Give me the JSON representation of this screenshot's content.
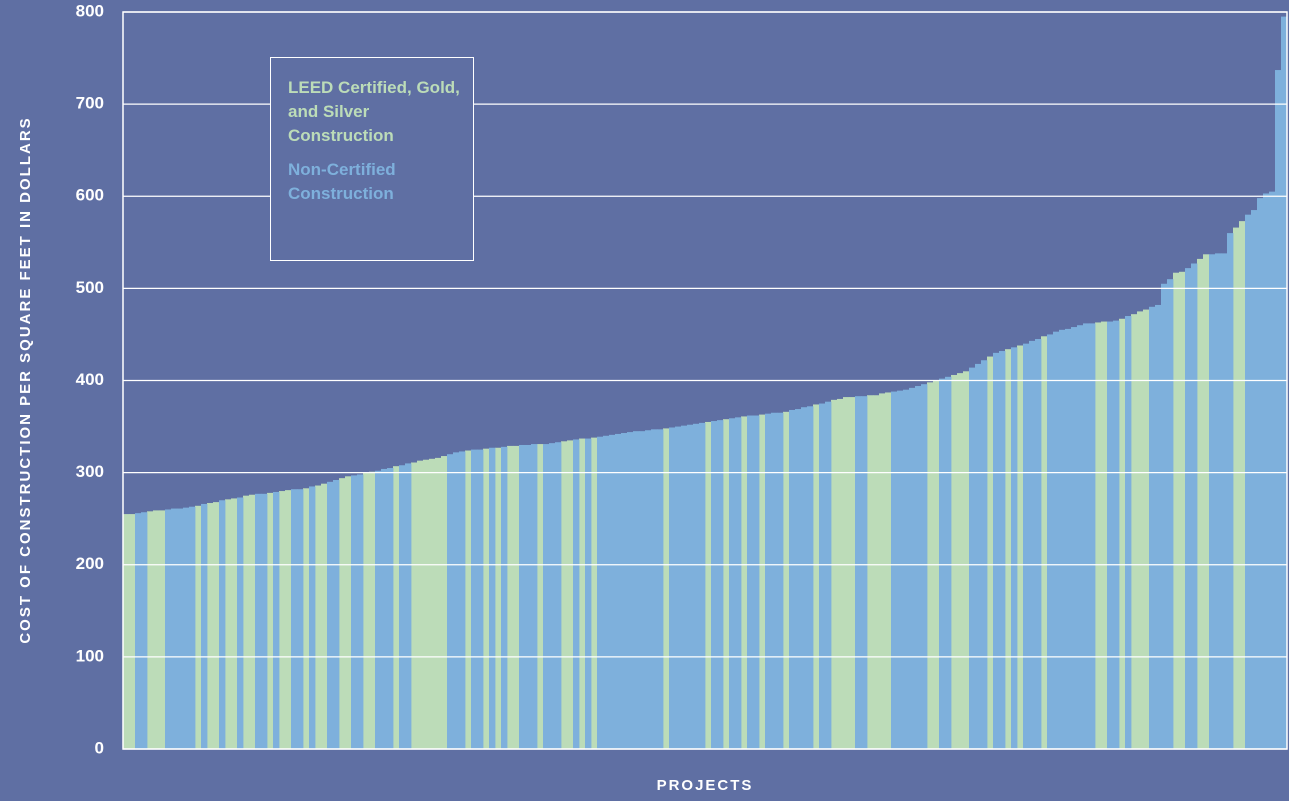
{
  "chart_data": {
    "type": "bar",
    "y_label": "COST OF CONSTRUCTION PER SQUARE FEET IN DOLLARS",
    "x_label": "PROJECTS",
    "ylim": [
      0,
      800
    ],
    "yticks": [
      0,
      100,
      200,
      300,
      400,
      500,
      600,
      700,
      800
    ],
    "grid": true,
    "series": [
      {
        "name": "LEED Certified, Gold, and Silver Construction",
        "color": "#bcdcb8",
        "values": [
          255,
          255,
          null,
          null,
          258,
          259,
          259,
          null,
          null,
          null,
          null,
          null,
          264,
          null,
          267,
          268,
          null,
          271,
          272,
          null,
          275,
          276,
          null,
          null,
          278,
          null,
          280,
          281,
          null,
          null,
          283,
          null,
          286,
          288,
          null,
          null,
          294,
          296,
          null,
          null,
          300,
          301,
          null,
          null,
          null,
          307,
          null,
          null,
          311,
          313,
          314,
          315,
          316,
          318,
          null,
          null,
          null,
          324,
          null,
          null,
          326,
          null,
          327,
          null,
          329,
          329,
          null,
          null,
          null,
          331,
          null,
          null,
          null,
          334,
          335,
          null,
          337,
          null,
          338,
          null,
          null,
          null,
          null,
          null,
          null,
          null,
          null,
          null,
          null,
          null,
          348,
          null,
          null,
          null,
          null,
          null,
          null,
          355,
          null,
          null,
          358,
          null,
          null,
          361,
          null,
          null,
          363,
          null,
          null,
          null,
          366,
          null,
          null,
          null,
          null,
          374,
          null,
          null,
          379,
          380,
          382,
          382,
          null,
          null,
          384,
          384,
          386,
          387,
          null,
          null,
          null,
          null,
          null,
          null,
          398,
          400,
          null,
          null,
          406,
          408,
          410,
          null,
          null,
          null,
          426,
          null,
          null,
          434,
          null,
          438,
          null,
          null,
          null,
          448,
          null,
          null,
          null,
          null,
          null,
          null,
          null,
          null,
          463,
          464,
          null,
          null,
          467,
          null,
          472,
          475,
          477,
          null,
          null,
          null,
          null,
          517,
          518,
          null,
          null,
          532,
          537,
          null,
          null,
          null,
          null,
          566,
          573,
          null,
          null,
          null,
          null,
          null,
          null,
          null
        ]
      },
      {
        "name": "Non-Certified Construction",
        "color": "#7eb0dc",
        "values": [
          null,
          null,
          256,
          257,
          null,
          null,
          null,
          260,
          261,
          261,
          262,
          263,
          null,
          266,
          null,
          null,
          270,
          null,
          null,
          273,
          null,
          null,
          277,
          277,
          null,
          279,
          null,
          null,
          282,
          282,
          null,
          285,
          null,
          null,
          290,
          292,
          null,
          null,
          297,
          298,
          null,
          null,
          302,
          304,
          305,
          null,
          308,
          310,
          null,
          null,
          null,
          null,
          null,
          null,
          320,
          322,
          323,
          null,
          325,
          325,
          null,
          327,
          null,
          328,
          null,
          null,
          330,
          330,
          331,
          null,
          331,
          332,
          333,
          null,
          null,
          336,
          null,
          337,
          null,
          339,
          340,
          341,
          342,
          343,
          344,
          345,
          345,
          346,
          347,
          347,
          null,
          349,
          350,
          351,
          352,
          353,
          354,
          null,
          356,
          357,
          null,
          359,
          360,
          null,
          362,
          362,
          null,
          364,
          365,
          365,
          null,
          368,
          369,
          371,
          372,
          null,
          375,
          377,
          null,
          null,
          null,
          null,
          383,
          383,
          null,
          null,
          null,
          null,
          388,
          389,
          390,
          392,
          394,
          396,
          null,
          null,
          402,
          404,
          null,
          null,
          null,
          414,
          418,
          422,
          null,
          430,
          432,
          null,
          436,
          null,
          440,
          443,
          445,
          null,
          450,
          453,
          455,
          456,
          458,
          460,
          462,
          462,
          null,
          null,
          464,
          465,
          null,
          470,
          null,
          null,
          null,
          480,
          482,
          505,
          510,
          null,
          null,
          522,
          527,
          null,
          null,
          537,
          538,
          538,
          560,
          null,
          null,
          580,
          585,
          598,
          603,
          605,
          737,
          795
        ]
      }
    ]
  }
}
